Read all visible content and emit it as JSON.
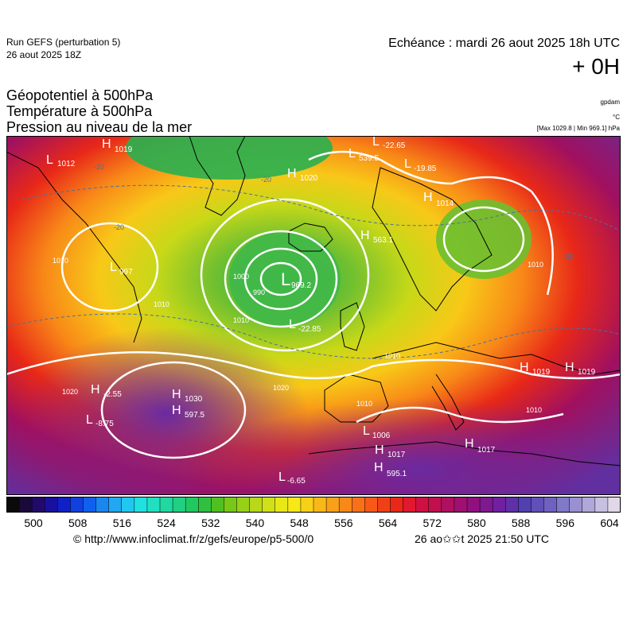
{
  "header": {
    "run_title": "Run GEFS (perturbation 5)",
    "run_date": "26 aout 2025 18Z",
    "echeance": "Echéance : mardi 26 aout 2025 18h UTC",
    "lead_time": "+ 0H"
  },
  "titles": {
    "line1": "Géopotentiel à 500hPa",
    "line2": "Température à 500hPa",
    "line3": "Pression au niveau de la mer"
  },
  "units": {
    "gpdam": "gpdam",
    "degc": "°C",
    "maxmin": "[Max 1029.8 | Min 969.1] hPa"
  },
  "map": {
    "region": "Europe / North Atlantic",
    "pressure_systems": [
      {
        "type": "H",
        "value": "1019"
      },
      {
        "type": "L",
        "value": "1012"
      },
      {
        "type": "H",
        "value": "1020"
      },
      {
        "type": "L",
        "value": "539.5"
      },
      {
        "type": "L",
        "value": "-22.65"
      },
      {
        "type": "H",
        "value": "1014"
      },
      {
        "type": "L",
        "value": "-19.85"
      },
      {
        "type": "L",
        "value": "997"
      },
      {
        "type": "L",
        "value": "563.1"
      },
      {
        "type": "L",
        "value": "969.2"
      },
      {
        "type": "L",
        "value": "-22.85"
      },
      {
        "type": "H",
        "value": "1019"
      },
      {
        "type": "H",
        "value": "1019"
      },
      {
        "type": "H",
        "value": "-2.55"
      },
      {
        "type": "H",
        "value": "1030"
      },
      {
        "type": "H",
        "value": "597.5"
      },
      {
        "type": "L",
        "value": "-8.75"
      },
      {
        "type": "L",
        "value": "1006"
      },
      {
        "type": "H",
        "value": "1017"
      },
      {
        "type": "H",
        "value": "1017"
      },
      {
        "type": "H",
        "value": "595.1"
      },
      {
        "type": "L",
        "value": "-6.65"
      }
    ],
    "isobar_labels": [
      "1010",
      "1010",
      "1000",
      "990",
      "1010",
      "1010",
      "1020",
      "1010",
      "1010",
      "1010",
      "1020"
    ],
    "temp_labels": [
      "-20",
      "-20",
      "-20",
      "-20"
    ]
  },
  "colorbar": {
    "ticks": [
      "500",
      "508",
      "516",
      "524",
      "532",
      "540",
      "548",
      "556",
      "564",
      "572",
      "580",
      "588",
      "596",
      "604"
    ],
    "colors": [
      "#0a0a0a",
      "#1a0a3a",
      "#220a6a",
      "#1a10a0",
      "#1020c8",
      "#1040e0",
      "#1060f0",
      "#1888f0",
      "#20a8f0",
      "#20c8f0",
      "#20e0e0",
      "#20e0c0",
      "#20d8a0",
      "#20d080",
      "#20c860",
      "#30c040",
      "#50c020",
      "#78c818",
      "#98d018",
      "#b8d818",
      "#d0e018",
      "#e8e818",
      "#f8e818",
      "#f8d018",
      "#f8b818",
      "#f8a018",
      "#f88818",
      "#f87018",
      "#f85818",
      "#f04018",
      "#e82818",
      "#e01830",
      "#d01040",
      "#c01050",
      "#b01060",
      "#a01070",
      "#901080",
      "#801890",
      "#7020a0",
      "#6030a8",
      "#5040b0",
      "#6050b8",
      "#7060c0",
      "#8078c8",
      "#9890d0",
      "#b0a8d8",
      "#c8c0e0",
      "#e0d8e8"
    ]
  },
  "footer": {
    "source": "© http://www.infoclimat.fr/z/gefs/europe/p5-500/0",
    "generated": "26 ao✩✩t 2025 21:50 UTC"
  }
}
